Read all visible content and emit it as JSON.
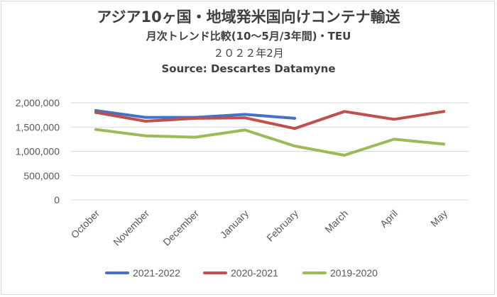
{
  "chart_data": {
    "type": "line",
    "title": "アジア10ヶ国・地域発米国向けコンテナ輸送",
    "subtitle": "月次トレンド比較(10～5月/3年間)・TEU",
    "date_line": "２０２２年2月",
    "source": "Source: Descartes Datamyne",
    "categories": [
      "October",
      "November",
      "December",
      "January",
      "February",
      "March",
      "April",
      "May"
    ],
    "ylim": [
      0,
      2000000
    ],
    "yticks": [
      0,
      500000,
      1000000,
      1500000,
      2000000
    ],
    "ytick_labels": [
      "0",
      "500,000",
      "1,000,000",
      "1,500,000",
      "2,000,000"
    ],
    "grid": true,
    "legend_position": "bottom",
    "series": [
      {
        "name": "2021-2022",
        "color": "#4472c4",
        "values": [
          1840000,
          1700000,
          1700000,
          1760000,
          1680000,
          null,
          null,
          null
        ]
      },
      {
        "name": "2020-2021",
        "color": "#c0504d",
        "values": [
          1800000,
          1620000,
          1680000,
          1690000,
          1470000,
          1820000,
          1660000,
          1820000
        ]
      },
      {
        "name": "2019-2020",
        "color": "#9bbb59",
        "values": [
          1450000,
          1320000,
          1290000,
          1440000,
          1110000,
          920000,
          1250000,
          1150000
        ]
      }
    ]
  }
}
